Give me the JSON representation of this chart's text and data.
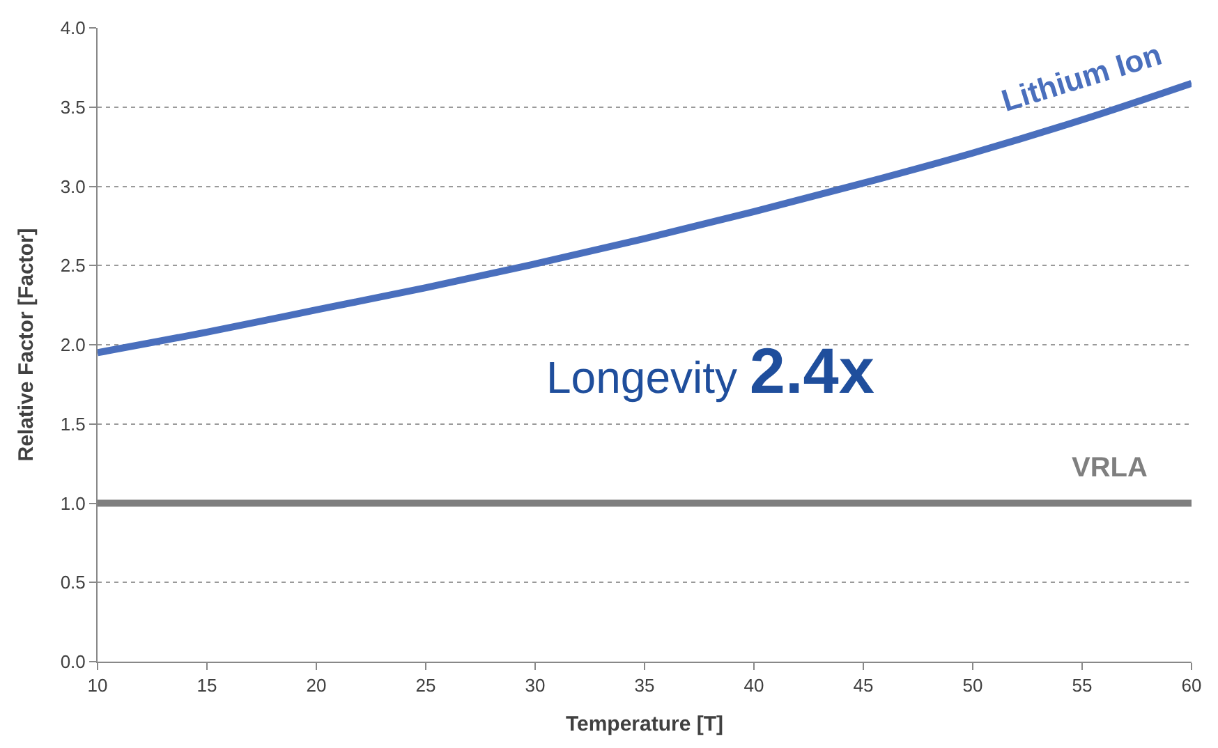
{
  "chart_data": {
    "type": "line",
    "xlabel": "Temperature [T]",
    "ylabel": "Relative Factor [Factor]",
    "x": [
      10,
      15,
      20,
      25,
      30,
      35,
      40,
      45,
      50,
      55,
      60
    ],
    "series": [
      {
        "name": "Lithium Ion",
        "color": "#4a6fbd",
        "values": [
          1.95,
          2.08,
          2.22,
          2.36,
          2.51,
          2.67,
          2.84,
          3.02,
          3.21,
          3.42,
          3.65
        ]
      },
      {
        "name": "VRLA",
        "color": "#7f7f7f",
        "values": [
          1.0,
          1.0,
          1.0,
          1.0,
          1.0,
          1.0,
          1.0,
          1.0,
          1.0,
          1.0,
          1.0
        ]
      }
    ],
    "annotations": [
      "Longevity 2.4x"
    ],
    "xlim": [
      10,
      60
    ],
    "xticks": [
      10,
      15,
      20,
      25,
      30,
      35,
      40,
      45,
      50,
      55,
      60
    ],
    "ylim": [
      0,
      4
    ],
    "yticks": [
      {
        "value": 0,
        "label": "0.0"
      },
      0.5,
      {
        "value": 1,
        "label": "1.0"
      },
      1.5,
      {
        "value": 2,
        "label": "2.0"
      },
      2.5,
      {
        "value": 3,
        "label": "3.0"
      },
      3.5,
      {
        "value": 4,
        "label": "4.0"
      }
    ],
    "grid": "y",
    "legend": false,
    "marker": "none",
    "line_style": "solid"
  }
}
